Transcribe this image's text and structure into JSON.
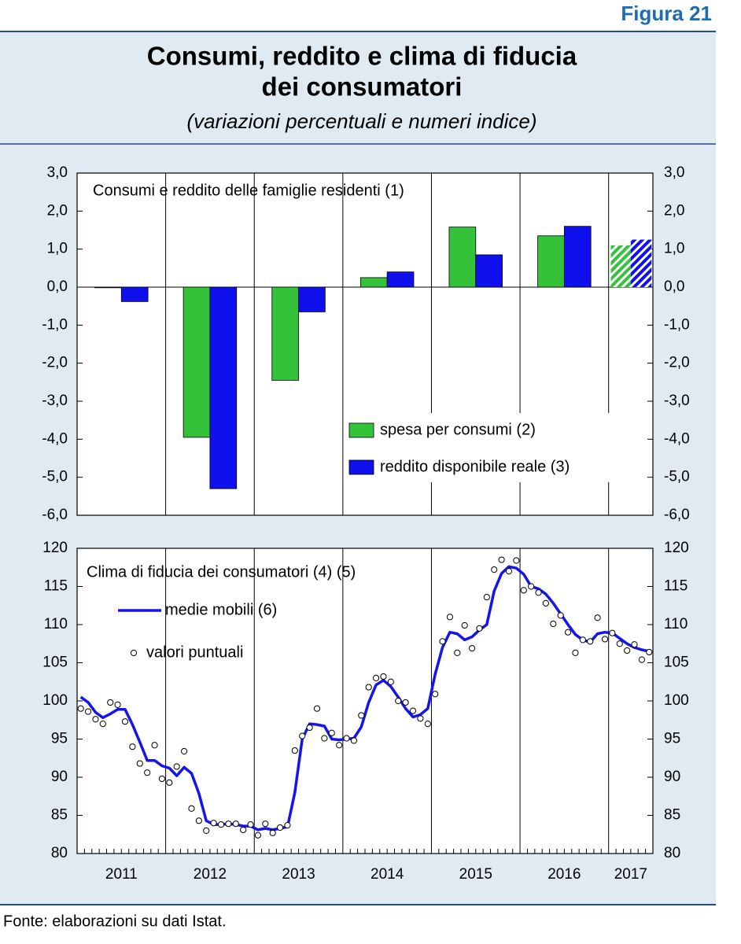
{
  "header": {
    "figure": "Figura 21",
    "title_lines": [
      "Consumi, reddito e clima di fiducia",
      "dei consumatori"
    ],
    "subtitle": "(variazioni percentuali e numeri indice)"
  },
  "source": "Fonte: elaborazioni su dati Istat.",
  "chart_data": [
    {
      "type": "bar",
      "title": "Consumi e reddito delle famiglie residenti (1)",
      "categories": [
        "2011",
        "2012",
        "2013",
        "2014",
        "2015",
        "2016",
        "2017"
      ],
      "series": [
        {
          "name": "spesa per consumi  (2)",
          "color": "#35c23b",
          "values": [
            0.0,
            -3.95,
            -2.45,
            0.25,
            1.58,
            1.35,
            1.1
          ]
        },
        {
          "name": "reddito disponibile reale (3)",
          "color": "#1010ee",
          "values": [
            -0.38,
            -5.3,
            -0.65,
            0.4,
            0.85,
            1.6,
            1.25
          ]
        }
      ],
      "hatched_categories": [
        "2017"
      ],
      "ylim": [
        -6,
        3
      ],
      "yticks": [
        {
          "value": -6,
          "label": "-6,0"
        },
        {
          "value": -5,
          "label": "-5,0"
        },
        {
          "value": -4,
          "label": "-4,0"
        },
        {
          "value": -3,
          "label": "-3,0"
        },
        {
          "value": -2,
          "label": "-2,0"
        },
        {
          "value": -1,
          "label": "-1,0"
        },
        {
          "value": 0,
          "label": "0,0"
        },
        {
          "value": 1,
          "label": "1,0"
        },
        {
          "value": 2,
          "label": "2,0"
        },
        {
          "value": 3,
          "label": "3,0"
        }
      ]
    },
    {
      "type": "line",
      "title": "Clima di fiducia dei consumatori (4) (5)",
      "series": [
        {
          "name": "medie mobili (6)",
          "color": "#1414ee",
          "style": "line",
          "values": [
            100.5,
            99.8,
            98.5,
            97.8,
            98.3,
            98.9,
            98.9,
            96.9,
            94.6,
            92.2,
            92.2,
            91.5,
            91.2,
            90.2,
            91.3,
            90.5,
            87.9,
            84.3,
            83.8,
            83.8,
            83.9,
            83.8,
            83.6,
            83.6,
            83.1,
            83.3,
            83.1,
            83.3,
            83.5,
            88.0,
            95.0,
            97.0,
            96.9,
            96.7,
            95.0,
            94.9,
            95.0,
            95.1,
            96.6,
            99.8,
            102.1,
            102.7,
            101.9,
            100.5,
            99.0,
            97.9,
            98.2,
            99.0,
            103.5,
            107.0,
            109.0,
            108.8,
            108.0,
            108.4,
            109.3,
            110.0,
            114.4,
            116.7,
            117.6,
            117.4,
            116.6,
            115.0,
            114.7,
            114.0,
            112.8,
            111.4,
            110.0,
            108.7,
            108.0,
            107.7,
            108.8,
            109.0,
            108.9,
            108.2,
            107.5,
            107.0,
            106.7,
            106.5
          ]
        },
        {
          "name": "valori puntuali",
          "color": "#000000",
          "style": "markers",
          "values": [
            99.0,
            98.6,
            97.6,
            97.0,
            99.8,
            99.5,
            97.3,
            94.0,
            91.8,
            90.6,
            94.2,
            89.8,
            89.3,
            91.4,
            93.4,
            85.9,
            84.3,
            83.0,
            84.0,
            83.8,
            83.9,
            83.9,
            83.1,
            83.8,
            82.4,
            83.9,
            82.7,
            83.4,
            83.7,
            93.5,
            95.4,
            96.5,
            99.0,
            95.1,
            95.8,
            94.2,
            95.1,
            94.8,
            98.1,
            101.8,
            103.0,
            103.2,
            102.5,
            100.0,
            99.8,
            98.7,
            97.7,
            97.0,
            100.9,
            107.8,
            111.0,
            106.3,
            109.9,
            106.9,
            109.5,
            113.6,
            117.2,
            118.5,
            117.0,
            118.4,
            114.5,
            115.0,
            114.2,
            112.8,
            110.1,
            111.2,
            109.0,
            106.3,
            108.0,
            107.8,
            110.9,
            108.1,
            108.9,
            107.5,
            106.6,
            107.4,
            105.4,
            106.4
          ]
        }
      ],
      "ylim": [
        80,
        120
      ],
      "yticks": [
        80,
        85,
        90,
        95,
        100,
        105,
        110,
        115,
        120
      ]
    }
  ]
}
